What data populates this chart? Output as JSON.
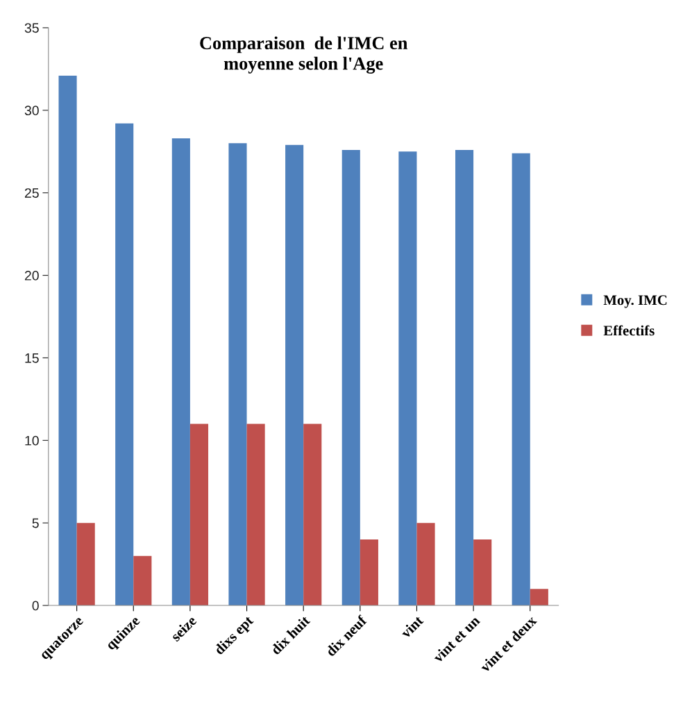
{
  "chart_data": {
    "type": "bar",
    "title": "Comparaison  de l'IMC en\nmoyenne selon l'Age",
    "categories": [
      "quatorze",
      "quinze",
      "seize",
      "dixs ept",
      "dix huit",
      "dix neuf",
      "vint",
      "vint et un",
      "vint et deux"
    ],
    "series": [
      {
        "name": "Moy. IMC",
        "color": "#4f81bd",
        "values": [
          32.1,
          29.2,
          28.3,
          28.0,
          27.9,
          27.6,
          27.5,
          27.6,
          27.4
        ]
      },
      {
        "name": "Effectifs",
        "color": "#c0504d",
        "values": [
          5,
          3,
          11,
          11,
          11,
          4,
          5,
          4,
          1
        ]
      }
    ],
    "ylim": [
      0,
      35
    ],
    "yticks": [
      0,
      5,
      10,
      15,
      20,
      25,
      30,
      35
    ],
    "grid": false,
    "legend": "right"
  }
}
